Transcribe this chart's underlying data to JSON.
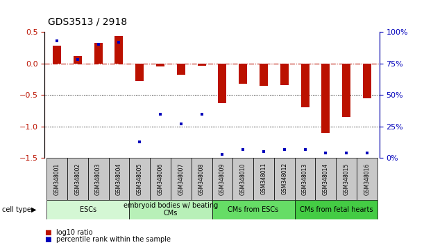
{
  "title": "GDS3513 / 2918",
  "samples": [
    "GSM348001",
    "GSM348002",
    "GSM348003",
    "GSM348004",
    "GSM348005",
    "GSM348006",
    "GSM348007",
    "GSM348008",
    "GSM348009",
    "GSM348010",
    "GSM348011",
    "GSM348012",
    "GSM348013",
    "GSM348014",
    "GSM348015",
    "GSM348016"
  ],
  "log10_ratio": [
    0.28,
    0.12,
    0.32,
    0.43,
    -0.28,
    -0.05,
    -0.18,
    -0.04,
    -0.63,
    -0.32,
    -0.35,
    -0.34,
    -0.7,
    -1.1,
    -0.85,
    -0.55
  ],
  "percentile_rank": [
    93,
    78,
    90,
    92,
    13,
    35,
    27,
    35,
    3,
    7,
    5,
    7,
    7,
    4,
    4,
    4
  ],
  "cell_groups": [
    {
      "label": "ESCs",
      "start": 0,
      "end": 3,
      "color": "#d4f7d4"
    },
    {
      "label": "embryoid bodies w/ beating\nCMs",
      "start": 4,
      "end": 7,
      "color": "#b8f0b8"
    },
    {
      "label": "CMs from ESCs",
      "start": 8,
      "end": 11,
      "color": "#66dd66"
    },
    {
      "label": "CMs from fetal hearts",
      "start": 12,
      "end": 15,
      "color": "#44cc44"
    }
  ],
  "bar_color_red": "#bb1100",
  "bar_color_blue": "#0000bb",
  "ylim_left": [
    -1.5,
    0.5
  ],
  "ylim_right": [
    0,
    100
  ],
  "yticks_left": [
    -1.5,
    -1.0,
    -0.5,
    0.0,
    0.5
  ],
  "yticks_right": [
    0,
    25,
    50,
    75,
    100
  ],
  "hline_y": 0.0,
  "dotted_lines": [
    -0.5,
    -1.0
  ],
  "xlim": [
    -0.6,
    15.6
  ],
  "bar_width": 0.4,
  "sample_box_color": "#c8c8c8",
  "cell_type_label_fontsize": 7,
  "sample_fontsize": 5.5,
  "axis_fontsize": 8,
  "title_fontsize": 10
}
